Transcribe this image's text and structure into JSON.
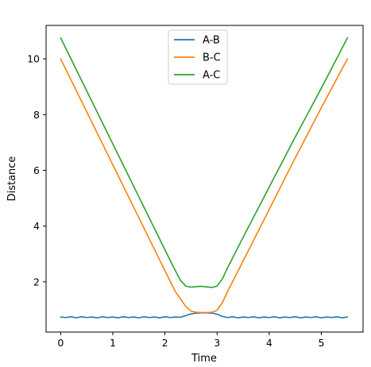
{
  "chart_data": {
    "type": "line",
    "title": "",
    "xlabel": "Time",
    "ylabel": "Distance",
    "xlim": [
      -0.28,
      5.8
    ],
    "ylim": [
      0.2,
      11.2
    ],
    "xticks": [
      0,
      1,
      2,
      3,
      4,
      5
    ],
    "yticks": [
      2,
      4,
      6,
      8,
      10
    ],
    "grid": false,
    "legend_position": "top-center",
    "series": [
      {
        "name": "A-B",
        "color": "#1f77b4",
        "x": [
          0.0,
          0.1,
          0.2,
          0.3,
          0.4,
          0.5,
          0.6,
          0.7,
          0.8,
          0.9,
          1.0,
          1.1,
          1.2,
          1.3,
          1.4,
          1.5,
          1.6,
          1.7,
          1.8,
          1.9,
          2.0,
          2.1,
          2.2,
          2.3,
          2.4,
          2.5,
          2.6,
          2.7,
          2.8,
          2.9,
          3.0,
          3.1,
          3.2,
          3.3,
          3.4,
          3.5,
          3.6,
          3.7,
          3.8,
          3.9,
          4.0,
          4.1,
          4.2,
          4.3,
          4.4,
          4.5,
          4.6,
          4.7,
          4.8,
          4.9,
          5.0,
          5.1,
          5.2,
          5.3,
          5.4,
          5.5
        ],
        "y": [
          0.74,
          0.72,
          0.75,
          0.71,
          0.75,
          0.72,
          0.74,
          0.71,
          0.75,
          0.72,
          0.74,
          0.71,
          0.75,
          0.72,
          0.74,
          0.71,
          0.75,
          0.72,
          0.74,
          0.71,
          0.75,
          0.72,
          0.74,
          0.73,
          0.79,
          0.85,
          0.88,
          0.89,
          0.89,
          0.88,
          0.84,
          0.76,
          0.72,
          0.75,
          0.71,
          0.74,
          0.72,
          0.75,
          0.71,
          0.74,
          0.72,
          0.75,
          0.71,
          0.74,
          0.72,
          0.75,
          0.71,
          0.74,
          0.72,
          0.75,
          0.71,
          0.74,
          0.72,
          0.75,
          0.71,
          0.74
        ]
      },
      {
        "name": "B-C",
        "color": "#ff7f0e",
        "x": [
          0.0,
          0.5,
          1.0,
          1.5,
          2.0,
          2.2,
          2.4,
          2.5,
          2.6,
          2.7,
          2.8,
          2.9,
          3.0,
          3.1,
          3.2,
          3.5,
          4.0,
          4.5,
          5.0,
          5.5
        ],
        "y": [
          10.0,
          8.1,
          6.2,
          4.3,
          2.4,
          1.65,
          1.12,
          0.95,
          0.91,
          0.9,
          0.9,
          0.91,
          0.98,
          1.25,
          1.65,
          2.75,
          4.6,
          6.45,
          8.25,
          10.0
        ]
      },
      {
        "name": "A-C",
        "color": "#2ca02c",
        "x": [
          0.0,
          0.5,
          1.0,
          1.5,
          2.0,
          2.2,
          2.3,
          2.4,
          2.5,
          2.6,
          2.7,
          2.8,
          2.9,
          3.0,
          3.1,
          3.2,
          3.5,
          4.0,
          4.5,
          5.0,
          5.5
        ],
        "y": [
          10.75,
          8.85,
          6.95,
          5.05,
          3.15,
          2.4,
          2.05,
          1.85,
          1.81,
          1.83,
          1.84,
          1.82,
          1.8,
          1.85,
          2.1,
          2.5,
          3.6,
          5.4,
          7.2,
          8.95,
          10.75
        ]
      }
    ]
  }
}
